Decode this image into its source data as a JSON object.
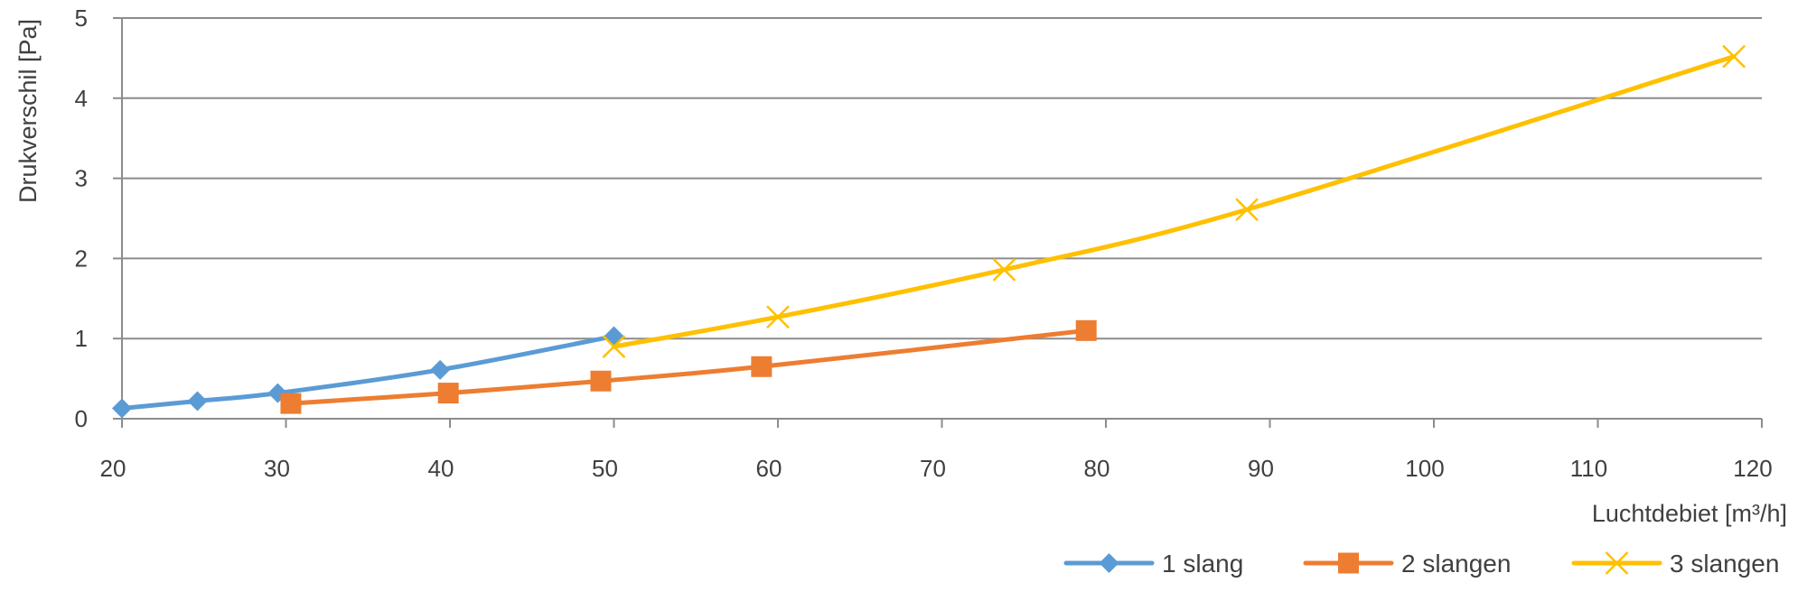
{
  "chart_data": {
    "type": "line",
    "title": "",
    "xlabel": "Luchtdebiet [m³/h]",
    "ylabel": "Drukverschil [Pa]",
    "xlim": [
      20,
      120
    ],
    "ylim": [
      0,
      5
    ],
    "x_ticks": [
      20,
      30,
      40,
      50,
      60,
      70,
      80,
      90,
      100,
      110,
      120
    ],
    "y_ticks": [
      0,
      1,
      2,
      3,
      4,
      5
    ],
    "grid": "horizontal",
    "legend_position": "bottom-right",
    "series": [
      {
        "name": "1 slang",
        "color": "#5B9BD5",
        "marker": "diamond",
        "x": [
          20,
          24.6,
          29.5,
          39.4,
          50
        ],
        "y": [
          0.13,
          0.22,
          0.32,
          0.61,
          1.03
        ]
      },
      {
        "name": "2 slangen",
        "color": "#ED7D31",
        "marker": "square",
        "x": [
          30.3,
          39.9,
          49.2,
          59,
          78.8
        ],
        "y": [
          0.19,
          0.32,
          0.47,
          0.65,
          1.1
        ]
      },
      {
        "name": "3 slangen",
        "color": "#FFC000",
        "marker": "x",
        "x": [
          50,
          60,
          73.8,
          88.6,
          118.3
        ],
        "y": [
          0.9,
          1.27,
          1.86,
          2.61,
          4.52
        ]
      }
    ]
  }
}
